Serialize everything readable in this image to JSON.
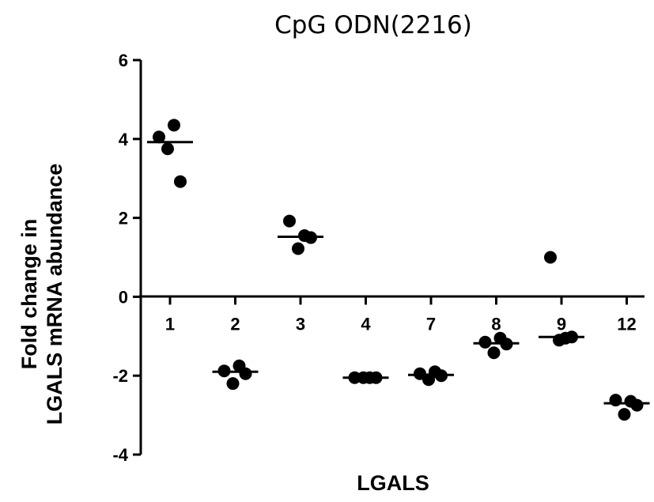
{
  "chart_data": {
    "type": "scatter",
    "title": "CpG ODN(2216)",
    "xlabel": "LGALS",
    "ylabel_lines": [
      "Fold change in",
      "LGALS mRNA abundance"
    ],
    "ylim": [
      -4,
      6
    ],
    "yticks": [
      -4,
      -2,
      0,
      2,
      4,
      6
    ],
    "grid": false,
    "categories": [
      "1",
      "2",
      "3",
      "4",
      "7",
      "8",
      "9",
      "12"
    ],
    "groups": [
      {
        "category": "1",
        "median": 3.92,
        "points": [
          4.05,
          4.35,
          3.75,
          2.92
        ]
      },
      {
        "category": "2",
        "median": -1.9,
        "points": [
          -1.88,
          -1.75,
          -2.2,
          -1.95
        ]
      },
      {
        "category": "3",
        "median": 1.52,
        "points": [
          1.92,
          1.55,
          1.22,
          1.5
        ]
      },
      {
        "category": "4",
        "median": -2.05,
        "points": [
          -2.05,
          -2.05,
          -2.05,
          -2.05
        ]
      },
      {
        "category": "7",
        "median": -1.98,
        "points": [
          -1.95,
          -1.9,
          -2.1,
          -2.0
        ]
      },
      {
        "category": "8",
        "median": -1.18,
        "points": [
          -1.15,
          -1.05,
          -1.42,
          -1.2
        ]
      },
      {
        "category": "9",
        "median": -1.02,
        "points": [
          1.0,
          -1.05,
          -1.1,
          -1.02
        ]
      },
      {
        "category": "12",
        "median": -2.7,
        "points": [
          -2.62,
          -2.65,
          -2.98,
          -2.75
        ]
      }
    ]
  }
}
